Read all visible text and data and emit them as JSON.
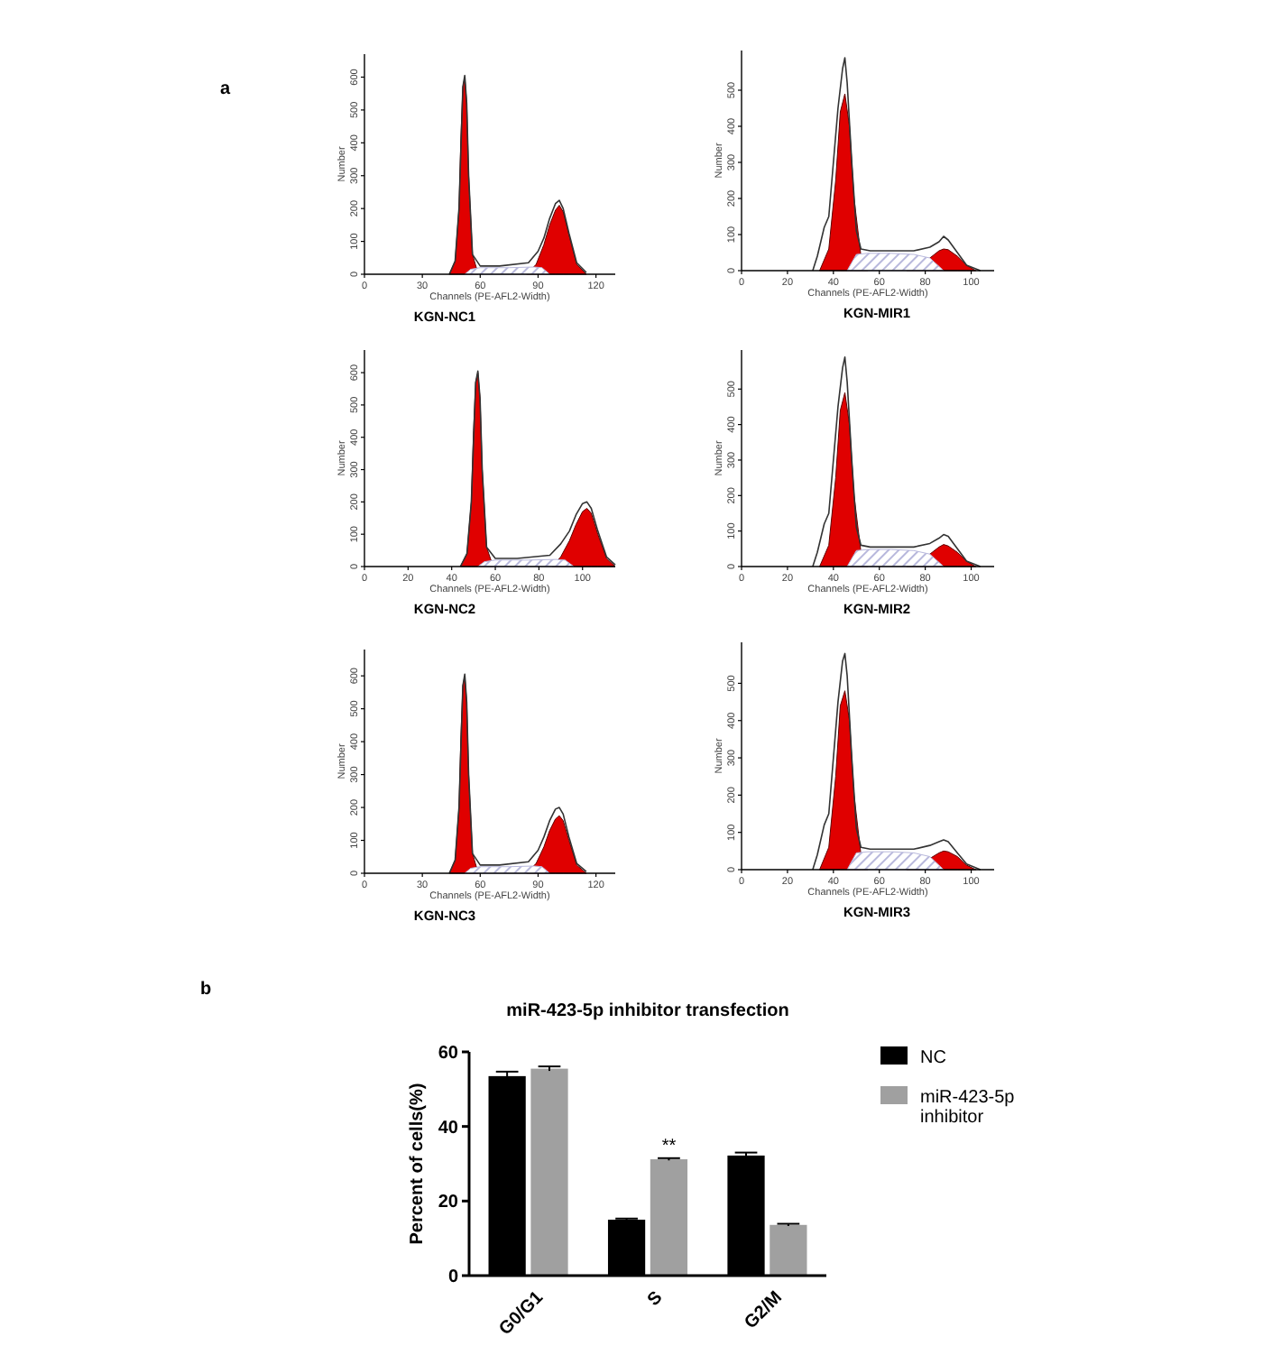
{
  "chart_data": [
    {
      "type": "area",
      "xlabel": "Channels (PE-AFL2-Width)",
      "ylabel": "Number",
      "xlim": [
        0,
        130
      ],
      "xticks": [
        0,
        30,
        60,
        90,
        120
      ],
      "ylim": [
        0,
        670
      ],
      "yticks": [
        0,
        100,
        200,
        300,
        400,
        500,
        600
      ],
      "annotations": [
        "KGN-NC1",
        "a"
      ],
      "series": [
        {
          "color": "#b8b8dc",
          "x": [
            52,
            55,
            60,
            75,
            88,
            92,
            96
          ],
          "values": [
            0,
            15,
            20,
            20,
            22,
            20,
            0
          ]
        },
        {
          "color": "#e00000",
          "x": [
            44,
            47,
            49,
            50,
            51,
            52,
            53,
            54,
            56,
            59
          ],
          "values": [
            0,
            40,
            200,
            420,
            570,
            600,
            520,
            300,
            60,
            0
          ]
        },
        {
          "color": "#e00000",
          "x": [
            84,
            89,
            93,
            96,
            99,
            101,
            103,
            106,
            110,
            115
          ],
          "values": [
            0,
            30,
            90,
            150,
            195,
            210,
            190,
            120,
            30,
            0
          ]
        },
        {
          "type": "line",
          "color": "#333333",
          "x": [
            44,
            47,
            49,
            51,
            52,
            53,
            54,
            56,
            60,
            70,
            85,
            90,
            93,
            96,
            99,
            101,
            103,
            106,
            110,
            115
          ],
          "values": [
            0,
            40,
            200,
            570,
            605,
            520,
            300,
            60,
            25,
            25,
            35,
            70,
            110,
            170,
            215,
            225,
            200,
            125,
            35,
            5
          ]
        }
      ]
    },
    {
      "type": "area",
      "xlabel": "Channels (PE-AFL2-Width)",
      "ylabel": "Number",
      "xlim": [
        0,
        110
      ],
      "xticks": [
        0,
        20,
        40,
        60,
        80,
        100
      ],
      "ylim": [
        0,
        610
      ],
      "yticks": [
        0,
        100,
        200,
        300,
        400,
        500
      ],
      "annotations": [
        "KGN-MIR1"
      ],
      "series": [
        {
          "color": "#b8b8dc",
          "x": [
            46,
            50,
            55,
            65,
            75,
            82,
            88
          ],
          "values": [
            0,
            45,
            48,
            48,
            45,
            35,
            0
          ]
        },
        {
          "color": "#e00000",
          "x": [
            34,
            38,
            41,
            43,
            45,
            47,
            49,
            52,
            55
          ],
          "values": [
            0,
            60,
            250,
            440,
            490,
            400,
            200,
            40,
            0
          ]
        },
        {
          "color": "#e00000",
          "x": [
            72,
            78,
            82,
            86,
            88,
            90,
            94,
            98,
            102
          ],
          "values": [
            0,
            null,
            35,
            55,
            60,
            58,
            40,
            15,
            0
          ]
        },
        {
          "type": "line",
          "color": "#333333",
          "x": [
            31,
            33,
            36,
            38,
            40,
            42,
            44,
            45,
            46,
            48,
            50,
            52,
            56,
            65,
            75,
            82,
            86,
            88,
            90,
            94,
            98,
            104
          ],
          "values": [
            0,
            40,
            120,
            150,
            300,
            450,
            560,
            590,
            520,
            300,
            110,
            60,
            55,
            55,
            55,
            65,
            80,
            95,
            85,
            50,
            15,
            0
          ]
        }
      ]
    },
    {
      "type": "area",
      "xlabel": "Channels (PE-AFL2-Width)",
      "ylabel": "Number",
      "xlim": [
        0,
        115
      ],
      "xticks": [
        0,
        20,
        40,
        60,
        80,
        100
      ],
      "ylim": [
        0,
        670
      ],
      "yticks": [
        0,
        100,
        200,
        300,
        400,
        500,
        600
      ],
      "annotations": [
        "KGN-NC2"
      ],
      "series": [
        {
          "color": "#b8b8dc",
          "x": [
            52,
            55,
            60,
            75,
            88,
            92,
            96
          ],
          "values": [
            0,
            15,
            20,
            20,
            22,
            20,
            0
          ]
        },
        {
          "color": "#e00000",
          "x": [
            44,
            47,
            49,
            50,
            51,
            52,
            53,
            54,
            56,
            59
          ],
          "values": [
            0,
            40,
            200,
            420,
            570,
            600,
            520,
            300,
            60,
            0
          ]
        },
        {
          "color": "#e00000",
          "x": [
            86,
            90,
            94,
            97,
            100,
            102,
            104,
            107,
            111,
            115
          ],
          "values": [
            0,
            30,
            80,
            130,
            170,
            180,
            165,
            100,
            25,
            0
          ]
        },
        {
          "type": "line",
          "color": "#333333",
          "x": [
            44,
            47,
            49,
            51,
            52,
            53,
            54,
            56,
            60,
            70,
            85,
            90,
            94,
            97,
            100,
            102,
            104,
            107,
            111,
            115
          ],
          "values": [
            0,
            40,
            200,
            570,
            605,
            520,
            300,
            60,
            25,
            25,
            35,
            70,
            110,
            160,
            195,
            200,
            180,
            110,
            30,
            5
          ]
        }
      ]
    },
    {
      "type": "area",
      "xlabel": "Channels (PE-AFL2-Width)",
      "ylabel": "Number",
      "xlim": [
        0,
        110
      ],
      "xticks": [
        0,
        20,
        40,
        60,
        80,
        100
      ],
      "ylim": [
        0,
        610
      ],
      "yticks": [
        0,
        100,
        200,
        300,
        400,
        500
      ],
      "annotations": [
        "KGN-MIR2"
      ],
      "series": [
        {
          "color": "#b8b8dc",
          "x": [
            46,
            50,
            55,
            65,
            75,
            82,
            88
          ],
          "values": [
            0,
            45,
            48,
            48,
            45,
            35,
            0
          ]
        },
        {
          "color": "#e00000",
          "x": [
            34,
            38,
            41,
            43,
            45,
            47,
            49,
            52,
            55
          ],
          "values": [
            0,
            60,
            250,
            440,
            490,
            400,
            200,
            40,
            0
          ]
        },
        {
          "color": "#e00000",
          "x": [
            72,
            78,
            82,
            86,
            88,
            90,
            94,
            98,
            102
          ],
          "values": [
            0,
            null,
            35,
            55,
            62,
            58,
            40,
            15,
            0
          ]
        },
        {
          "type": "line",
          "color": "#333333",
          "x": [
            31,
            33,
            36,
            38,
            40,
            42,
            44,
            45,
            46,
            48,
            50,
            52,
            56,
            65,
            75,
            82,
            86,
            88,
            90,
            94,
            98,
            104
          ],
          "values": [
            0,
            40,
            120,
            150,
            300,
            450,
            560,
            590,
            520,
            300,
            110,
            60,
            55,
            55,
            55,
            65,
            80,
            90,
            85,
            50,
            15,
            0
          ]
        }
      ]
    },
    {
      "type": "area",
      "xlabel": "Channels (PE-AFL2-Width)",
      "ylabel": "Number",
      "xlim": [
        0,
        130
      ],
      "xticks": [
        0,
        30,
        60,
        90,
        120
      ],
      "ylim": [
        0,
        680
      ],
      "yticks": [
        0,
        100,
        200,
        300,
        400,
        500,
        600
      ],
      "annotations": [
        "KGN-NC3"
      ],
      "series": [
        {
          "color": "#b8b8dc",
          "x": [
            52,
            55,
            60,
            75,
            88,
            92,
            96
          ],
          "values": [
            0,
            15,
            20,
            20,
            22,
            20,
            0
          ]
        },
        {
          "color": "#e00000",
          "x": [
            44,
            47,
            49,
            50,
            51,
            52,
            53,
            54,
            56,
            59
          ],
          "values": [
            0,
            40,
            200,
            420,
            570,
            600,
            520,
            300,
            60,
            0
          ]
        },
        {
          "color": "#e00000",
          "x": [
            84,
            89,
            93,
            96,
            99,
            101,
            103,
            106,
            110,
            115
          ],
          "values": [
            0,
            30,
            80,
            130,
            165,
            175,
            160,
            100,
            25,
            0
          ]
        },
        {
          "type": "line",
          "color": "#333333",
          "x": [
            44,
            47,
            49,
            51,
            52,
            53,
            54,
            56,
            60,
            70,
            85,
            90,
            93,
            96,
            99,
            101,
            103,
            106,
            110,
            115
          ],
          "values": [
            0,
            40,
            200,
            570,
            605,
            520,
            300,
            60,
            25,
            25,
            35,
            70,
            110,
            160,
            195,
            200,
            180,
            110,
            30,
            5
          ]
        }
      ]
    },
    {
      "type": "area",
      "xlabel": "Channels (PE-AFL2-Width)",
      "ylabel": "Number",
      "xlim": [
        0,
        110
      ],
      "xticks": [
        0,
        20,
        40,
        60,
        80,
        100
      ],
      "ylim": [
        0,
        610
      ],
      "yticks": [
        0,
        100,
        200,
        300,
        400,
        500
      ],
      "annotations": [
        "KGN-MIR3"
      ],
      "series": [
        {
          "color": "#b8b8dc",
          "x": [
            46,
            50,
            55,
            65,
            75,
            82,
            88
          ],
          "values": [
            0,
            45,
            48,
            48,
            45,
            35,
            0
          ]
        },
        {
          "color": "#e00000",
          "x": [
            34,
            38,
            41,
            43,
            45,
            47,
            49,
            52,
            55
          ],
          "values": [
            0,
            60,
            250,
            440,
            480,
            400,
            200,
            40,
            0
          ]
        },
        {
          "color": "#e00000",
          "x": [
            72,
            78,
            82,
            86,
            88,
            90,
            94,
            98,
            102
          ],
          "values": [
            0,
            null,
            30,
            45,
            50,
            48,
            35,
            12,
            0
          ]
        },
        {
          "type": "line",
          "color": "#333333",
          "x": [
            31,
            33,
            36,
            38,
            40,
            42,
            44,
            45,
            46,
            48,
            50,
            52,
            56,
            65,
            75,
            82,
            86,
            88,
            90,
            94,
            98,
            104
          ],
          "values": [
            0,
            40,
            120,
            150,
            300,
            450,
            560,
            580,
            520,
            300,
            110,
            60,
            55,
            55,
            55,
            65,
            75,
            80,
            75,
            45,
            15,
            0
          ]
        }
      ]
    },
    {
      "type": "bar",
      "title": "miR-423-5p inhibitor transfection",
      "ylabel": "Percent of cells(%)",
      "categories": [
        "G0/G1",
        "S",
        "G2/M"
      ],
      "ylim": [
        0,
        60
      ],
      "yticks": [
        0,
        20,
        40,
        60
      ],
      "legend": "right",
      "annotations": [
        {
          "text": "**",
          "x": "S",
          "y": 33.5
        },
        "b"
      ],
      "series": [
        {
          "name": "NC",
          "color": "#000000",
          "values": [
            53.5,
            15,
            32.2
          ],
          "errors": [
            1.2,
            0.3,
            0.8
          ]
        },
        {
          "name": "miR-423-5p inhibitor",
          "color": "#a0a0a0",
          "values": [
            55.5,
            31.2,
            13.6
          ],
          "errors": [
            0.6,
            0.3,
            0.3
          ]
        }
      ]
    }
  ]
}
